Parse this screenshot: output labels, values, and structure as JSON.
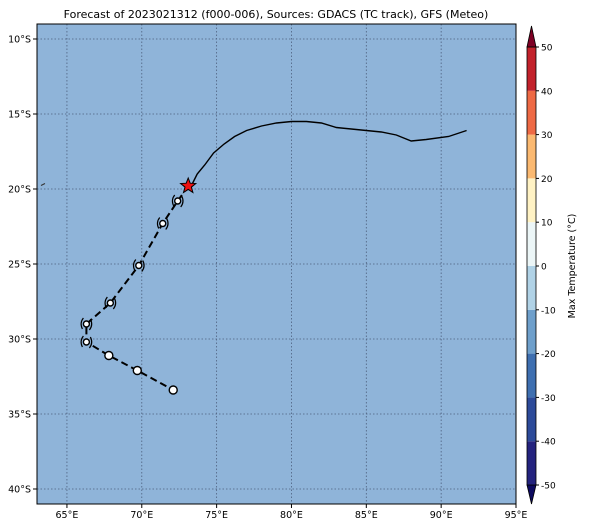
{
  "title": "Forecast of 2023021312 (f000-006), Sources: GDACS (TC track), GFS (Meteo)",
  "map": {
    "lon_range": [
      63,
      95
    ],
    "lat_range": [
      -41,
      -9
    ],
    "ocean_color": "#8fb4d9",
    "gridlines": true,
    "x_ticks": [
      {
        "value": 65,
        "label": "65°E"
      },
      {
        "value": 70,
        "label": "70°E"
      },
      {
        "value": 75,
        "label": "75°E"
      },
      {
        "value": 80,
        "label": "80°E"
      },
      {
        "value": 85,
        "label": "85°E"
      },
      {
        "value": 90,
        "label": "90°E"
      },
      {
        "value": 95,
        "label": "95°E"
      }
    ],
    "y_ticks": [
      {
        "value": -10,
        "label": "10°S"
      },
      {
        "value": -15,
        "label": "15°S"
      },
      {
        "value": -20,
        "label": "20°S"
      },
      {
        "value": -25,
        "label": "25°S"
      },
      {
        "value": -30,
        "label": "30°S"
      },
      {
        "value": -35,
        "label": "35°S"
      },
      {
        "value": -40,
        "label": "40°S"
      }
    ]
  },
  "chart_data": {
    "type": "map",
    "observed_track": [
      [
        91.7,
        -16.1
      ],
      [
        90.5,
        -16.5
      ],
      [
        89.0,
        -16.7
      ],
      [
        88.0,
        -16.8
      ],
      [
        87.0,
        -16.4
      ],
      [
        86.0,
        -16.2
      ],
      [
        85.0,
        -16.1
      ],
      [
        84.0,
        -16.0
      ],
      [
        83.0,
        -15.9
      ],
      [
        82.0,
        -15.6
      ],
      [
        81.0,
        -15.5
      ],
      [
        80.0,
        -15.5
      ],
      [
        79.0,
        -15.6
      ],
      [
        78.0,
        -15.8
      ],
      [
        77.0,
        -16.1
      ],
      [
        76.2,
        -16.5
      ],
      [
        75.5,
        -17.0
      ],
      [
        74.8,
        -17.6
      ],
      [
        74.2,
        -18.4
      ],
      [
        73.7,
        -19.0
      ],
      [
        73.3,
        -19.8
      ]
    ],
    "current_position": [
      73.1,
      -19.8
    ],
    "forecast_track": [
      [
        73.1,
        -19.8
      ],
      [
        72.4,
        -20.8
      ],
      [
        71.4,
        -22.3
      ],
      [
        69.8,
        -25.1
      ],
      [
        67.9,
        -27.6
      ],
      [
        66.3,
        -29.0
      ],
      [
        66.3,
        -30.2
      ],
      [
        67.8,
        -31.1
      ],
      [
        69.7,
        -32.1
      ],
      [
        72.1,
        -33.4
      ]
    ],
    "forecast_points": [
      {
        "lon": 72.4,
        "lat": -20.8,
        "symbol": "cyclone"
      },
      {
        "lon": 71.4,
        "lat": -22.3,
        "symbol": "cyclone"
      },
      {
        "lon": 69.8,
        "lat": -25.1,
        "symbol": "cyclone"
      },
      {
        "lon": 67.9,
        "lat": -27.6,
        "symbol": "cyclone"
      },
      {
        "lon": 66.3,
        "lat": -29.0,
        "symbol": "cyclone"
      },
      {
        "lon": 66.3,
        "lat": -30.2,
        "symbol": "cyclone"
      },
      {
        "lon": 67.8,
        "lat": -31.1,
        "symbol": "low"
      },
      {
        "lon": 69.7,
        "lat": -32.1,
        "symbol": "low"
      },
      {
        "lon": 72.1,
        "lat": -33.4,
        "symbol": "low"
      }
    ],
    "small_mark": [
      63.4,
      -19.7
    ]
  },
  "colorbar": {
    "label": "Max Temperature (°C)",
    "min": -55,
    "max": 55,
    "ticks": [
      50,
      40,
      30,
      20,
      10,
      0,
      -10,
      -20,
      -30,
      -40,
      -50
    ],
    "bands": [
      {
        "from": -55,
        "to": -50,
        "color": "#0d0a60"
      },
      {
        "from": -50,
        "to": -40,
        "color": "#24237e"
      },
      {
        "from": -40,
        "to": -30,
        "color": "#2c4a99"
      },
      {
        "from": -30,
        "to": -20,
        "color": "#3e6fb0"
      },
      {
        "from": -20,
        "to": -10,
        "color": "#6e9fcb"
      },
      {
        "from": -10,
        "to": 0,
        "color": "#b0d2e6"
      },
      {
        "from": 0,
        "to": 10,
        "color": "#ecf6f7"
      },
      {
        "from": 10,
        "to": 20,
        "color": "#fff2c4"
      },
      {
        "from": 20,
        "to": 30,
        "color": "#fbb971"
      },
      {
        "from": 30,
        "to": 40,
        "color": "#ee6a45"
      },
      {
        "from": 40,
        "to": 50,
        "color": "#c2222b"
      },
      {
        "from": 50,
        "to": 55,
        "color": "#7d0024"
      }
    ]
  }
}
